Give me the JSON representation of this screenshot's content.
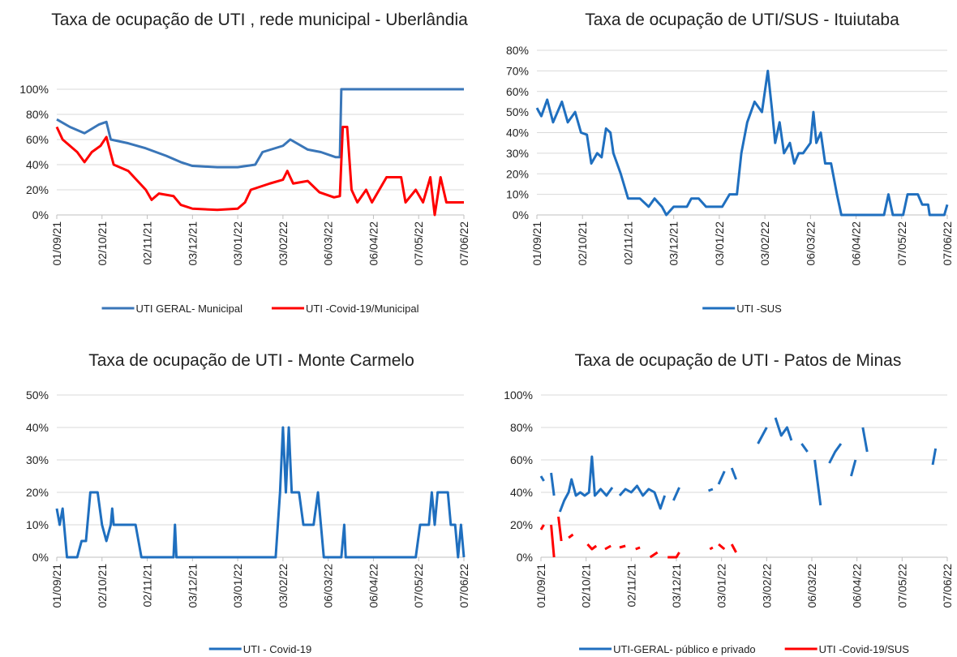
{
  "chart_data": [
    {
      "type": "line",
      "title": "Taxa de ocupação de UTI , rede municipal - Uberlândia",
      "xlim": [
        "01/09/21",
        "07/06/22"
      ],
      "xticks": [
        "01/09/21",
        "02/10/21",
        "02/11/21",
        "03/12/21",
        "03/01/22",
        "03/02/22",
        "06/03/22",
        "06/04/22",
        "07/05/22",
        "07/06/22"
      ],
      "ylim": [
        0,
        100
      ],
      "yticks": [
        {
          "value": 0,
          "label": "0%"
        },
        {
          "value": 20,
          "label": "20%"
        },
        {
          "value": 40,
          "label": "40%"
        },
        {
          "value": 60,
          "label": "60%"
        },
        {
          "value": 80,
          "label": "80%"
        },
        {
          "value": 100,
          "label": "100%"
        }
      ],
      "grid": true,
      "series": [
        {
          "name": "UTI GERAL- Municipal",
          "color": "#3a76b8",
          "x": [
            "01/09/21",
            "10/09/21",
            "20/09/21",
            "30/09/21",
            "05/10/21",
            "08/10/21",
            "20/10/21",
            "01/11/21",
            "15/11/21",
            "25/11/21",
            "03/12/21",
            "20/12/21",
            "03/01/22",
            "15/01/22",
            "20/01/22",
            "03/02/22",
            "08/02/22",
            "20/02/22",
            "01/03/22",
            "11/03/22",
            "14/03/22",
            "15/03/22",
            "01/04/22",
            "07/06/22"
          ],
          "values": [
            76,
            70,
            65,
            72,
            74,
            60,
            57,
            53,
            47,
            42,
            39,
            38,
            38,
            40,
            50,
            55,
            60,
            52,
            50,
            46,
            46,
            100,
            100,
            100
          ]
        },
        {
          "name": "UTI -Covid-19/Municipal",
          "color": "#ff0000",
          "x": [
            "01/09/21",
            "05/09/21",
            "15/09/21",
            "20/09/21",
            "25/09/21",
            "01/10/21",
            "05/10/21",
            "10/10/21",
            "20/10/21",
            "01/11/21",
            "05/11/21",
            "10/11/21",
            "20/11/21",
            "25/11/21",
            "03/12/21",
            "20/12/21",
            "03/01/22",
            "08/01/22",
            "12/01/22",
            "25/01/22",
            "03/02/22",
            "06/02/22",
            "10/02/22",
            "20/02/22",
            "28/02/22",
            "10/03/22",
            "14/03/22",
            "16/03/22",
            "19/03/22",
            "22/03/22",
            "26/03/22",
            "01/04/22",
            "05/04/22",
            "10/04/22",
            "15/04/22",
            "25/04/22",
            "28/04/22",
            "05/05/22",
            "10/05/22",
            "15/05/22",
            "18/05/22",
            "22/05/22",
            "26/05/22",
            "07/06/22"
          ],
          "values": [
            70,
            60,
            50,
            42,
            50,
            55,
            62,
            40,
            35,
            20,
            12,
            17,
            15,
            8,
            5,
            4,
            5,
            10,
            20,
            25,
            28,
            35,
            25,
            27,
            18,
            14,
            15,
            70,
            70,
            20,
            10,
            20,
            10,
            20,
            30,
            30,
            10,
            20,
            10,
            30,
            0,
            30,
            10,
            10
          ]
        }
      ]
    },
    {
      "type": "line",
      "title": "Taxa de ocupação de UTI/SUS - Ituiutaba",
      "xlim": [
        "01/09/21",
        "07/06/22"
      ],
      "xticks": [
        "01/09/21",
        "02/10/21",
        "02/11/21",
        "03/12/21",
        "03/01/22",
        "03/02/22",
        "06/03/22",
        "06/04/22",
        "07/05/22",
        "07/06/22"
      ],
      "ylim": [
        0,
        80
      ],
      "yticks": [
        {
          "value": 0,
          "label": "0%"
        },
        {
          "value": 10,
          "label": "10%"
        },
        {
          "value": 20,
          "label": "20%"
        },
        {
          "value": 30,
          "label": "30%"
        },
        {
          "value": 40,
          "label": "40%"
        },
        {
          "value": 50,
          "label": "50%"
        },
        {
          "value": 60,
          "label": "60%"
        },
        {
          "value": 70,
          "label": "70%"
        },
        {
          "value": 80,
          "label": "80%"
        }
      ],
      "grid": true,
      "series": [
        {
          "name": "UTI -SUS",
          "color": "#1f6fbf",
          "x": [
            "01/09/21",
            "04/09/21",
            "08/09/21",
            "12/09/21",
            "18/09/21",
            "22/09/21",
            "27/09/21",
            "01/10/21",
            "05/10/21",
            "08/10/21",
            "12/10/21",
            "15/10/21",
            "18/10/21",
            "21/10/21",
            "23/10/21",
            "28/10/21",
            "02/11/21",
            "10/11/21",
            "16/11/21",
            "20/11/21",
            "25/11/21",
            "28/11/21",
            "03/12/21",
            "12/12/21",
            "15/12/21",
            "20/12/21",
            "25/12/21",
            "05/01/22",
            "10/01/22",
            "15/01/22",
            "18/01/22",
            "22/01/22",
            "27/01/22",
            "01/02/22",
            "05/02/22",
            "08/02/22",
            "10/02/22",
            "13/02/22",
            "16/02/22",
            "20/02/22",
            "23/02/22",
            "26/02/22",
            "01/03/22",
            "06/03/22",
            "08/03/22",
            "10/03/22",
            "13/03/22",
            "16/03/22",
            "20/03/22",
            "24/03/22",
            "27/03/22",
            "25/04/22",
            "28/04/22",
            "01/05/22",
            "08/05/22",
            "11/05/22",
            "18/05/22",
            "21/05/22",
            "25/05/22",
            "26/05/22",
            "05/06/22",
            "07/06/22"
          ],
          "values": [
            52,
            48,
            56,
            45,
            55,
            45,
            50,
            40,
            39,
            25,
            30,
            28,
            42,
            40,
            30,
            20,
            8,
            8,
            4,
            8,
            4,
            0,
            4,
            4,
            8,
            8,
            4,
            4,
            10,
            10,
            30,
            45,
            55,
            50,
            70,
            50,
            35,
            45,
            30,
            35,
            25,
            30,
            30,
            35,
            50,
            35,
            40,
            25,
            25,
            10,
            0,
            0,
            10,
            0,
            0,
            10,
            10,
            5,
            5,
            0,
            0,
            5
          ]
        }
      ]
    },
    {
      "type": "line",
      "title": "Taxa de ocupação de UTI - Monte Carmelo",
      "xlim": [
        "01/09/21",
        "07/06/22"
      ],
      "xticks": [
        "01/09/21",
        "02/10/21",
        "02/11/21",
        "03/12/21",
        "03/01/22",
        "03/02/22",
        "06/03/22",
        "06/04/22",
        "07/05/22",
        "07/06/22"
      ],
      "ylim": [
        0,
        50
      ],
      "yticks": [
        {
          "value": 0,
          "label": "0%"
        },
        {
          "value": 10,
          "label": "10%"
        },
        {
          "value": 20,
          "label": "20%"
        },
        {
          "value": 30,
          "label": "30%"
        },
        {
          "value": 40,
          "label": "40%"
        },
        {
          "value": 50,
          "label": "50%"
        }
      ],
      "grid": true,
      "series": [
        {
          "name": "UTI - Covid-19",
          "color": "#1f6fbf",
          "x": [
            "01/09/21",
            "03/09/21",
            "05/09/21",
            "08/09/21",
            "15/09/21",
            "18/09/21",
            "21/09/21",
            "24/09/21",
            "29/09/21",
            "02/10/21",
            "05/10/21",
            "08/10/21",
            "09/10/21",
            "10/10/21",
            "25/10/21",
            "27/10/21",
            "29/10/21",
            "20/11/21",
            "21/11/21",
            "22/11/21",
            "29/01/22",
            "01/02/22",
            "03/02/22",
            "05/02/22",
            "07/02/22",
            "09/02/22",
            "14/02/22",
            "17/02/22",
            "24/02/22",
            "27/02/22",
            "01/03/22",
            "03/03/22",
            "15/03/22",
            "17/03/22",
            "18/03/22",
            "05/05/22",
            "08/05/22",
            "14/05/22",
            "16/05/22",
            "18/05/22",
            "20/05/22",
            "27/05/22",
            "29/05/22",
            "01/06/22",
            "03/06/22",
            "05/06/22",
            "07/06/22"
          ],
          "values": [
            15,
            10,
            15,
            0,
            0,
            5,
            5,
            20,
            20,
            10,
            5,
            10,
            15,
            10,
            10,
            5,
            0,
            0,
            10,
            0,
            0,
            20,
            40,
            20,
            40,
            20,
            20,
            10,
            10,
            20,
            10,
            0,
            0,
            10,
            0,
            0,
            10,
            10,
            20,
            10,
            20,
            20,
            10,
            10,
            0,
            10,
            0
          ]
        }
      ]
    },
    {
      "type": "line",
      "title": "Taxa de ocupação de UTI - Patos de Minas",
      "xlim": [
        "01/09/21",
        "07/06/22"
      ],
      "xticks": [
        "01/09/21",
        "02/10/21",
        "02/11/21",
        "03/12/21",
        "03/01/22",
        "03/02/22",
        "06/03/22",
        "06/04/22",
        "07/05/22",
        "07/06/22"
      ],
      "ylim": [
        0,
        100
      ],
      "yticks": [
        {
          "value": 0,
          "label": "0%"
        },
        {
          "value": 20,
          "label": "20%"
        },
        {
          "value": 40,
          "label": "40%"
        },
        {
          "value": 60,
          "label": "60%"
        },
        {
          "value": 80,
          "label": "80%"
        },
        {
          "value": 100,
          "label": "100%"
        }
      ],
      "grid": true,
      "series": [
        {
          "name": "UTI-GERAL- público e privado",
          "color": "#1f6fbf",
          "x": [
            "01/09/21",
            "03/09/21",
            "05/09/21",
            "08/09/21",
            "10/09/21",
            "12/09/21",
            "14/09/21",
            "17/09/21",
            "20/09/21",
            "22/09/21",
            "25/09/21",
            "28/09/21",
            "01/10/21",
            "04/10/21",
            "06/10/21",
            "08/10/21",
            "12/10/21",
            "16/10/21",
            "20/10/21",
            "22/10/21",
            "25/10/21",
            "29/10/21",
            "02/11/21",
            "06/11/21",
            "10/11/21",
            "14/11/21",
            "18/11/21",
            "22/11/21",
            "25/11/21",
            "28/11/21",
            "01/12/21",
            "05/12/21",
            "07/12/21",
            "25/12/21",
            "28/12/21",
            "30/12/21",
            "01/01/22",
            "05/01/22",
            "08/01/22",
            "10/01/22",
            "13/01/22",
            "15/01/22",
            "28/01/22",
            "03/02/22",
            "06/02/22",
            "09/02/22",
            "13/02/22",
            "17/02/22",
            "20/02/22",
            "24/02/22",
            "27/02/22",
            "03/03/22",
            "06/03/22",
            "08/03/22",
            "12/03/22",
            "14/03/22",
            "18/03/22",
            "22/03/22",
            "26/03/22",
            "30/03/22",
            "02/04/22",
            "05/04/22",
            "07/04/22",
            "10/04/22",
            "13/04/22",
            "15/04/22",
            "28/05/22",
            "30/05/22"
          ],
          "values": [
            50,
            47,
            null,
            52,
            38,
            null,
            28,
            35,
            40,
            48,
            38,
            40,
            38,
            40,
            62,
            38,
            42,
            38,
            43,
            null,
            38,
            42,
            40,
            44,
            38,
            42,
            40,
            30,
            38,
            null,
            35,
            43,
            null,
            41,
            42,
            null,
            45,
            53,
            null,
            55,
            48,
            null,
            70,
            80,
            null,
            86,
            75,
            80,
            72,
            null,
            70,
            65,
            null,
            60,
            32,
            null,
            58,
            65,
            70,
            null,
            50,
            60,
            null,
            80,
            65,
            null,
            57,
            67
          ]
        },
        {
          "name": "UTI -Covid-19/SUS",
          "color": "#ff0000",
          "x": [
            "01/09/21",
            "03/09/21",
            "05/09/21",
            "08/09/21",
            "10/09/21",
            "12/09/21",
            "13/09/21",
            "15/09/21",
            "17/09/21",
            "20/09/21",
            "23/09/21",
            "25/09/21",
            "03/10/21",
            "06/10/21",
            "09/10/21",
            "12/10/21",
            "15/10/21",
            "19/10/21",
            "22/10/21",
            "25/10/21",
            "29/10/21",
            "01/11/21",
            "05/11/21",
            "08/11/21",
            "11/11/21",
            "15/11/21",
            "20/11/21",
            "23/11/21",
            "27/11/21",
            "03/12/21",
            "05/12/21",
            "07/12/21",
            "26/12/21",
            "28/12/21",
            "30/12/21",
            "01/01/22",
            "05/01/22",
            "08/01/22",
            "10/01/22",
            "13/01/22"
          ],
          "values": [
            17,
            20,
            null,
            20,
            0,
            null,
            25,
            10,
            null,
            12,
            14,
            null,
            8,
            5,
            7,
            null,
            5,
            7,
            null,
            6,
            7,
            null,
            5,
            6,
            null,
            0,
            3,
            null,
            0,
            0,
            3,
            null,
            5,
            6,
            null,
            8,
            5,
            null,
            8,
            3
          ]
        }
      ]
    }
  ]
}
